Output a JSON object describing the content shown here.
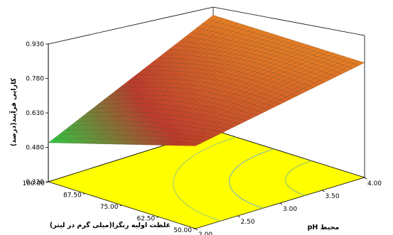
{
  "chart_data": {
    "type": "surface3d",
    "zlabel": "کارایی فرآیند(درصد)",
    "xlabel": "pH محیط",
    "ylabel": "غلظت اولیه رنگزا(میلی گرم در لیتر)",
    "z_ticks": [
      "0.930",
      "0.780",
      "0.630",
      "0.480",
      "0.330"
    ],
    "x_ticks": [
      "2.00",
      "2.50",
      "3.00",
      "3.50",
      "4.00"
    ],
    "y_ticks": [
      "50.00",
      "62.50",
      "75.00",
      "87.50",
      "100.00"
    ],
    "xlim": [
      2.0,
      4.0
    ],
    "ylim": [
      50.0,
      100.0
    ],
    "zlim": [
      0.33,
      0.93
    ],
    "surface_corners": [
      {
        "pH": 2.0,
        "dye": 100.0,
        "efficiency": 0.5
      },
      {
        "pH": 4.0,
        "dye": 100.0,
        "efficiency": 0.83
      },
      {
        "pH": 2.0,
        "dye": 50.0,
        "efficiency": 0.69
      },
      {
        "pH": 4.0,
        "dye": 50.0,
        "efficiency": 0.83
      }
    ],
    "floor_color": "#ffff00",
    "surface_colors": {
      "low": "#2ecc40",
      "mid": "#c0392b",
      "high": "#e67e22"
    }
  }
}
